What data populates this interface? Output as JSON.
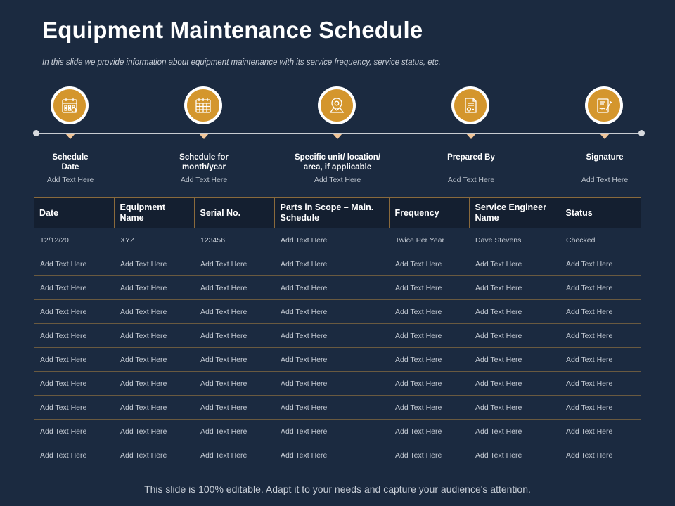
{
  "title": "Equipment Maintenance Schedule",
  "subtitle": "In this slide we provide information about equipment maintenance with its service frequency, service status, etc.",
  "accent_color": "#d4962d",
  "background_color": "#1b2a40",
  "steps": [
    {
      "icon": "calendar-icon",
      "label": "Schedule\nDate",
      "text": "Add Text Here"
    },
    {
      "icon": "calendar-grid-icon",
      "label": "Schedule for\nmonth/year",
      "text": "Add Text Here"
    },
    {
      "icon": "location-pin-icon",
      "label": "Specific unit/ location/\narea, if applicable",
      "text": "Add Text Here"
    },
    {
      "icon": "document-icon",
      "label": "Prepared By",
      "text": "Add Text Here"
    },
    {
      "icon": "signature-icon",
      "label": "Signature",
      "text": "Add Text Here"
    }
  ],
  "table": {
    "headers": [
      "Date",
      "Equipment Name",
      "Serial No.",
      "Parts in Scope – Main. Schedule",
      "Frequency",
      "Service Engineer Name",
      "Status"
    ],
    "rows": [
      [
        "12/12/20",
        "XYZ",
        "123456",
        "Add Text Here",
        "Twice Per Year",
        "Dave Stevens",
        "Checked"
      ],
      [
        "Add Text Here",
        "Add Text Here",
        "Add Text Here",
        "Add Text Here",
        "Add Text Here",
        "Add Text Here",
        "Add Text Here"
      ],
      [
        "Add Text Here",
        "Add Text Here",
        "Add Text Here",
        "Add Text Here",
        "Add Text Here",
        "Add Text Here",
        "Add Text Here"
      ],
      [
        "Add Text Here",
        "Add Text Here",
        "Add Text Here",
        "Add Text Here",
        "Add Text Here",
        "Add Text Here",
        "Add Text Here"
      ],
      [
        "Add Text Here",
        "Add Text Here",
        "Add Text Here",
        "Add Text Here",
        "Add Text Here",
        "Add Text Here",
        "Add Text Here"
      ],
      [
        "Add Text Here",
        "Add Text Here",
        "Add Text Here",
        "Add Text Here",
        "Add Text Here",
        "Add Text Here",
        "Add Text Here"
      ],
      [
        "Add Text Here",
        "Add Text Here",
        "Add Text Here",
        "Add Text Here",
        "Add Text Here",
        "Add Text Here",
        "Add Text Here"
      ],
      [
        "Add Text Here",
        "Add Text Here",
        "Add Text Here",
        "Add Text Here",
        "Add Text Here",
        "Add Text Here",
        "Add Text Here"
      ],
      [
        "Add Text Here",
        "Add Text Here",
        "Add Text Here",
        "Add Text Here",
        "Add Text Here",
        "Add Text Here",
        "Add Text Here"
      ],
      [
        "Add Text Here",
        "Add Text Here",
        "Add Text Here",
        "Add Text Here",
        "Add Text Here",
        "Add Text Here",
        "Add Text Here"
      ]
    ]
  },
  "footer": "This slide is 100% editable. Adapt it to your needs and capture your audience's attention."
}
